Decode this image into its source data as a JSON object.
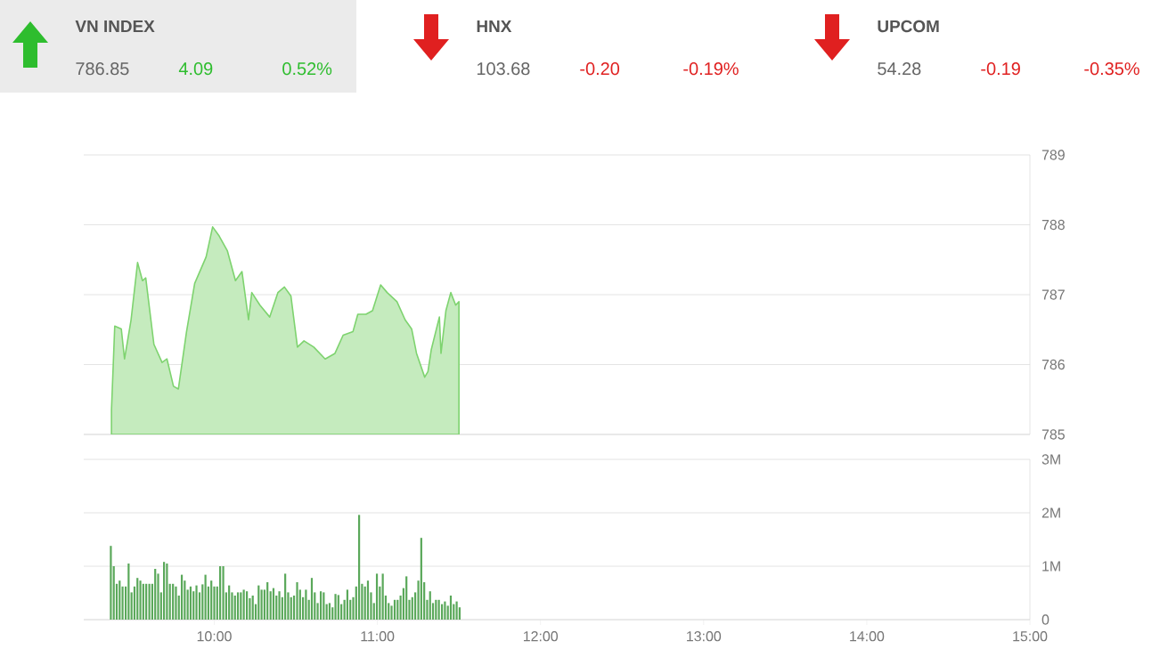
{
  "chart_data": [
    {
      "type": "other",
      "title": "VN INDEX",
      "values": [
        786.85,
        4.09,
        0.52
      ],
      "value_labels": [
        "786.85",
        "4.09",
        "0.52%"
      ]
    },
    {
      "type": "other",
      "title": "HNX",
      "values": [
        103.68,
        -0.2,
        -0.19
      ],
      "value_labels": [
        "103.68",
        "-0.20",
        "-0.19%"
      ]
    },
    {
      "type": "other",
      "title": "UPCOM",
      "values": [
        54.28,
        -0.19,
        -0.35
      ],
      "value_labels": [
        "54.28",
        "-0.19",
        "-0.35%"
      ]
    },
    {
      "type": "area",
      "color": "#7ed36f",
      "xlim": [
        9.2,
        15
      ],
      "ylim": [
        785,
        789
      ],
      "yticks": [
        785,
        786,
        787,
        788,
        789
      ],
      "grid": "y",
      "tick_labels": "y",
      "x": [
        9.37,
        9.39,
        9.43,
        9.45,
        9.49,
        9.53,
        9.56,
        9.58,
        9.63,
        9.68,
        9.71,
        9.75,
        9.78,
        9.83,
        9.88,
        9.95,
        9.99,
        10.03,
        10.08,
        10.13,
        10.17,
        10.21,
        10.23,
        10.28,
        10.34,
        10.39,
        10.43,
        10.47,
        10.51,
        10.55,
        10.61,
        10.68,
        10.74,
        10.79,
        10.85,
        10.88,
        10.93,
        10.97,
        11.02,
        11.06,
        11.12,
        11.17,
        11.21,
        11.24,
        11.29,
        11.31,
        11.33,
        11.38,
        11.39,
        11.42,
        11.45,
        11.48,
        11.5
      ],
      "values": [
        785.35,
        786.55,
        786.51,
        786.08,
        786.64,
        787.46,
        787.2,
        787.24,
        786.29,
        786.03,
        786.08,
        785.69,
        785.65,
        786.47,
        787.16,
        787.54,
        787.97,
        787.84,
        787.63,
        787.2,
        787.33,
        786.64,
        787.03,
        786.85,
        786.68,
        787.03,
        787.11,
        786.98,
        786.25,
        786.34,
        786.25,
        786.08,
        786.16,
        786.42,
        786.47,
        786.72,
        786.72,
        786.77,
        787.14,
        787.03,
        786.9,
        786.64,
        786.51,
        786.16,
        785.82,
        785.9,
        786.21,
        786.68,
        786.16,
        786.77,
        787.03,
        786.85,
        786.9
      ]
    },
    {
      "type": "bar",
      "color": "#5aa85a",
      "xlim": [
        9.2,
        15
      ],
      "ylim": [
        0,
        3
      ],
      "grid": "y",
      "xticks": [
        {
          "value": 10,
          "label": "10:00"
        },
        {
          "value": 11,
          "label": "11:00"
        },
        {
          "value": 12,
          "label": "12:00"
        },
        {
          "value": 13,
          "label": "13:00"
        },
        {
          "value": 14,
          "label": "14:00"
        },
        {
          "value": 15,
          "label": "15:00"
        }
      ],
      "yticks": [
        0,
        {
          "value": 1,
          "label": "1M"
        },
        {
          "value": 2,
          "label": "2M"
        },
        {
          "value": 3,
          "label": "3M"
        }
      ],
      "x": [
        9.366,
        9.384,
        9.402,
        9.42,
        9.438,
        9.457,
        9.475,
        9.493,
        9.511,
        9.529,
        9.547,
        9.565,
        9.583,
        9.602,
        9.62,
        9.638,
        9.656,
        9.674,
        9.692,
        9.71,
        9.728,
        9.747,
        9.765,
        9.783,
        9.801,
        9.819,
        9.837,
        9.855,
        9.873,
        9.891,
        9.91,
        9.928,
        9.946,
        9.964,
        9.982,
        10.0,
        10.018,
        10.036,
        10.055,
        10.073,
        10.091,
        10.109,
        10.127,
        10.145,
        10.163,
        10.181,
        10.2,
        10.218,
        10.236,
        10.254,
        10.272,
        10.29,
        10.308,
        10.326,
        10.345,
        10.363,
        10.381,
        10.399,
        10.417,
        10.435,
        10.453,
        10.471,
        10.489,
        10.508,
        10.526,
        10.544,
        10.562,
        10.58,
        10.598,
        10.616,
        10.634,
        10.653,
        10.671,
        10.689,
        10.707,
        10.725,
        10.743,
        10.761,
        10.779,
        10.798,
        10.816,
        10.834,
        10.852,
        10.87,
        10.888,
        10.906,
        10.924,
        10.942,
        10.961,
        10.979,
        10.997,
        11.015,
        11.033,
        11.051,
        11.069,
        11.087,
        11.106,
        11.124,
        11.142,
        11.16,
        11.178,
        11.196,
        11.214,
        11.232,
        11.251,
        11.269,
        11.287,
        11.305,
        11.323,
        11.341,
        11.359,
        11.377,
        11.396,
        11.414,
        11.432,
        11.45,
        11.468,
        11.486,
        11.504
      ],
      "values": [
        1.38,
        1.0,
        0.67,
        0.73,
        0.62,
        0.62,
        1.05,
        0.51,
        0.62,
        0.78,
        0.73,
        0.67,
        0.67,
        0.67,
        0.67,
        0.95,
        0.86,
        0.51,
        1.08,
        1.05,
        0.67,
        0.67,
        0.62,
        0.45,
        0.84,
        0.73,
        0.56,
        0.62,
        0.53,
        0.64,
        0.51,
        0.66,
        0.84,
        0.62,
        0.73,
        0.62,
        0.62,
        1.0,
        1.0,
        0.51,
        0.64,
        0.51,
        0.45,
        0.51,
        0.51,
        0.56,
        0.53,
        0.4,
        0.45,
        0.29,
        0.64,
        0.56,
        0.56,
        0.7,
        0.53,
        0.59,
        0.45,
        0.53,
        0.42,
        0.86,
        0.51,
        0.42,
        0.45,
        0.7,
        0.56,
        0.42,
        0.56,
        0.37,
        0.78,
        0.51,
        0.31,
        0.53,
        0.51,
        0.29,
        0.31,
        0.23,
        0.48,
        0.46,
        0.29,
        0.37,
        0.56,
        0.37,
        0.42,
        0.62,
        1.96,
        0.67,
        0.62,
        0.73,
        0.51,
        0.31,
        0.86,
        0.62,
        0.86,
        0.45,
        0.31,
        0.26,
        0.37,
        0.37,
        0.45,
        0.59,
        0.81,
        0.37,
        0.42,
        0.51,
        0.73,
        1.53,
        0.7,
        0.37,
        0.53,
        0.31,
        0.37,
        0.37,
        0.29,
        0.34,
        0.26,
        0.45,
        0.29,
        0.34,
        0.23
      ]
    }
  ]
}
